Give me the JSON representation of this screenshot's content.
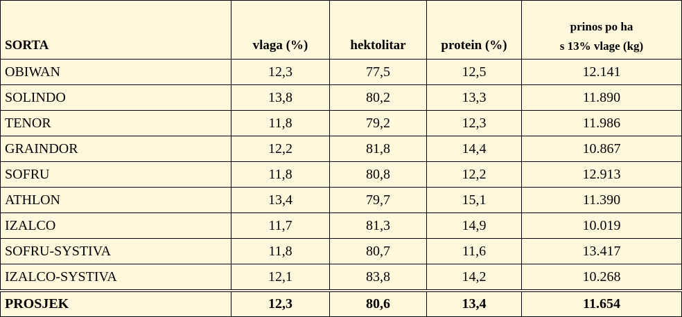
{
  "table": {
    "header": [
      "SORTA",
      "vlaga (%)",
      "hektolitar",
      "protein (%)",
      [
        "prinos po ha",
        "s 13% vlage (kg)"
      ]
    ],
    "rows": [
      [
        "OBIWAN",
        "12,3",
        "77,5",
        "12,5",
        "12.141"
      ],
      [
        "SOLINDO",
        "13,8",
        "80,2",
        "13,3",
        "11.890"
      ],
      [
        "TENOR",
        "11,8",
        "79,2",
        "12,3",
        "11.986"
      ],
      [
        "GRAINDOR",
        "12,2",
        "81,8",
        "14,4",
        "10.867"
      ],
      [
        "SOFRU",
        "11,8",
        "80,8",
        "12,2",
        "12.913"
      ],
      [
        "ATHLON",
        "13,4",
        "79,7",
        "15,1",
        "11.390"
      ],
      [
        "IZALCO",
        "11,7",
        "81,3",
        "14,9",
        "10.019"
      ],
      [
        "SOFRU-SYSTIVA",
        "11,8",
        "80,7",
        "11,6",
        "13.417"
      ],
      [
        "IZALCO-SYSTIVA",
        "12,1",
        "83,8",
        "14,2",
        "10.268"
      ]
    ],
    "footer": [
      "PROSJEK",
      "12,3",
      "80,6",
      "13,4",
      "11.654"
    ]
  }
}
